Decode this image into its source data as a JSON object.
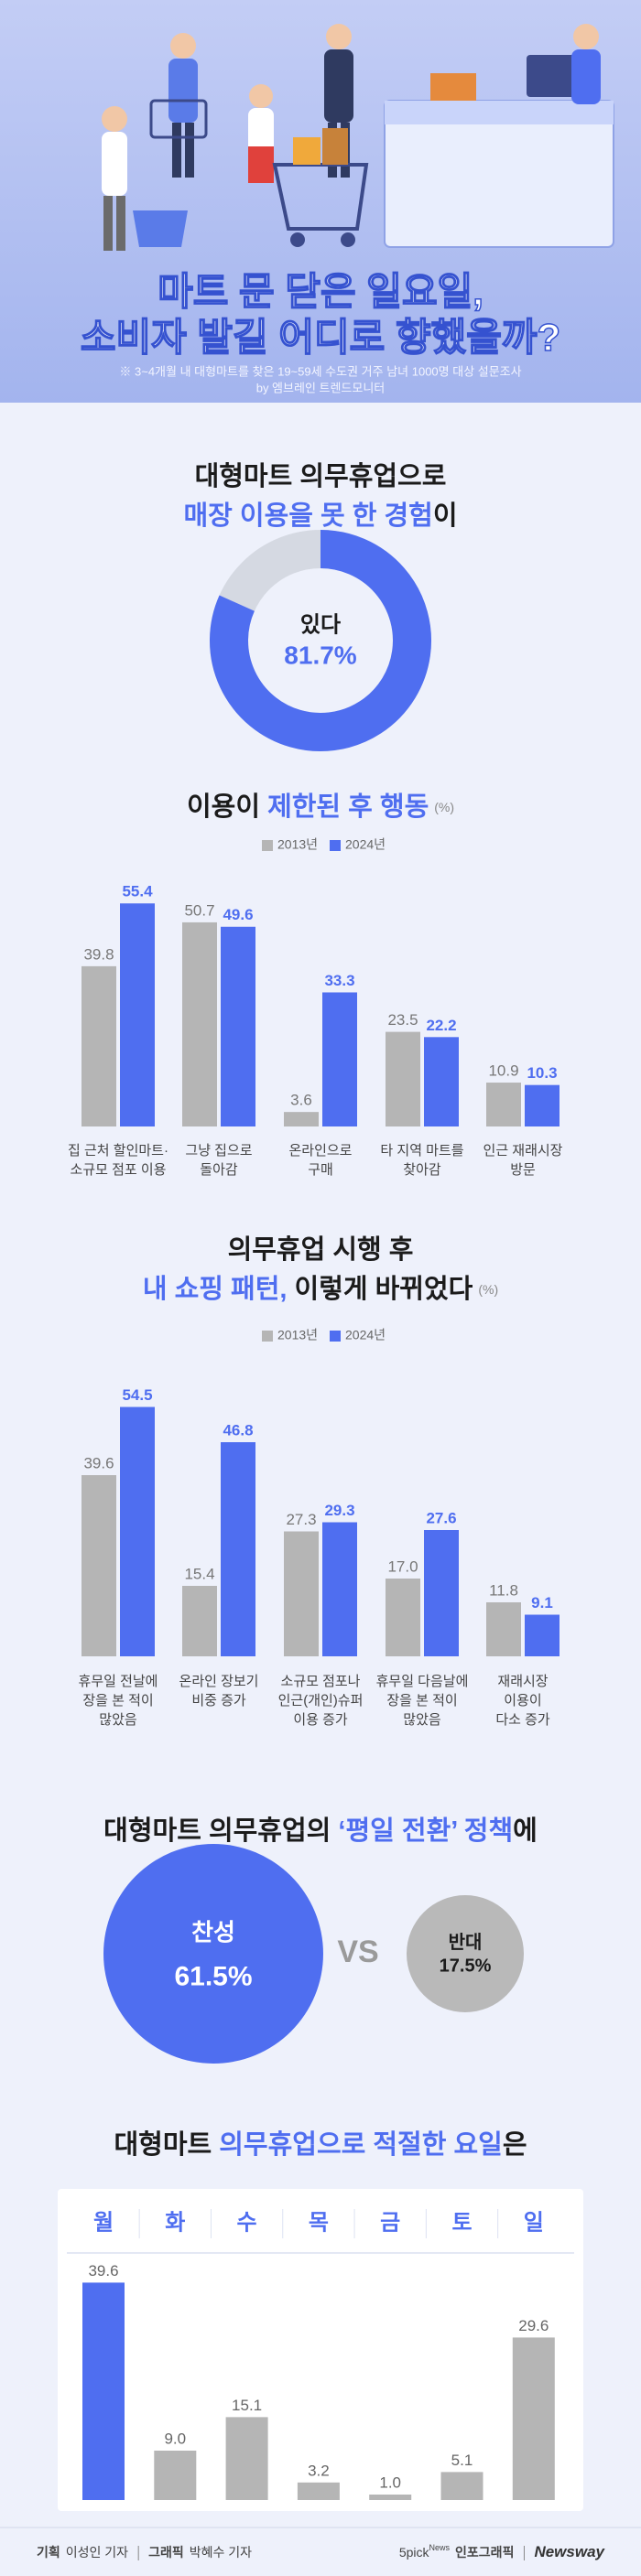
{
  "header": {
    "title": [
      "마트 문 닫은 일요일,",
      "소비자 발길 어디로 향했을까?"
    ],
    "note": [
      "※ 3~4개월 내 대형마트를 찾은 19~59세 수도권 거주 남녀 1000명 대상 설문조사",
      "by 엠브레인 트렌드모니터"
    ]
  },
  "chart_data": [
    {
      "type": "donut",
      "title": [
        [
          "대형마트 의무휴업으로"
        ],
        [
          "매장 이용을 못 한 경험",
          "이"
        ]
      ],
      "categories": [
        "있다"
      ],
      "values": [
        81.7
      ],
      "value_labels": [
        "81.7%"
      ],
      "color": "#4f6ef0",
      "rest_color": "#d5d9e2"
    },
    {
      "type": "bar",
      "title": [
        [
          "이용이 ",
          "제한된 후 행동"
        ]
      ],
      "unit": "(%)",
      "categories": [
        [
          "집 근처 할인마트·",
          "소규모 점포 이용"
        ],
        [
          "그냥 집으로",
          "돌아감"
        ],
        [
          "온라인으로",
          "구매"
        ],
        [
          "타 지역 마트를",
          "찾아감"
        ],
        [
          "인근 재래시장",
          "방문"
        ]
      ],
      "series": [
        {
          "name": "2013년",
          "color": "#b5b5b5",
          "values": [
            39.8,
            50.7,
            3.6,
            23.5,
            10.9
          ]
        },
        {
          "name": "2024년",
          "color": "#4f6ef0",
          "values": [
            55.4,
            49.6,
            33.3,
            22.2,
            10.3
          ]
        }
      ]
    },
    {
      "type": "bar",
      "title": [
        [
          "의무휴업 시행 후"
        ],
        [
          "내 쇼핑 패턴,",
          " 이렇게 바뀌었다"
        ]
      ],
      "unit": "(%)",
      "categories": [
        [
          "휴무일 전날에",
          "장을 본 적이",
          "많았음"
        ],
        [
          "온라인 장보기",
          "비중 증가"
        ],
        [
          "소규모 점포나",
          "인근(개인)슈퍼",
          "이용 증가"
        ],
        [
          "휴무일 다음날에",
          "장을 본 적이",
          "많았음"
        ],
        [
          "재래시장",
          "이용이",
          "다소 증가"
        ]
      ],
      "series": [
        {
          "name": "2013년",
          "color": "#b5b5b5",
          "values": [
            39.6,
            15.4,
            27.3,
            17.0,
            11.8
          ],
          "value_labels": [
            "39.6",
            "15.4",
            "27.3",
            "17.0",
            "11.8"
          ]
        },
        {
          "name": "2024년",
          "color": "#4f6ef0",
          "values": [
            54.5,
            46.8,
            29.3,
            27.6,
            9.1
          ]
        }
      ]
    },
    {
      "type": "bubble",
      "title": [
        [
          "대형마트 의무휴업의 ",
          "‘평일 전환’ 정책",
          "에"
        ]
      ],
      "categories": [
        "찬성",
        "반대"
      ],
      "values": [
        61.5,
        17.5
      ],
      "value_labels": [
        "61.5%",
        "17.5%"
      ],
      "colors": [
        "#4f6ef0",
        "#b9b9b9"
      ],
      "separator": "VS"
    },
    {
      "type": "bar",
      "title": [
        [
          "대형마트 ",
          "의무휴업으로 적절한 요일",
          "은"
        ]
      ],
      "categories": [
        [
          "월"
        ],
        [
          "화"
        ],
        [
          "수"
        ],
        [
          "목"
        ],
        [
          "금"
        ],
        [
          "토"
        ],
        [
          "일"
        ]
      ],
      "values": [
        39.6,
        9.0,
        15.1,
        3.2,
        1.0,
        5.1,
        29.6
      ],
      "value_labels": [
        "39.6",
        "9.0",
        "15.1",
        "3.2",
        "1.0",
        "5.1",
        "29.6"
      ],
      "colors": [
        "#4f6ef0",
        "#b5b5b5",
        "#b5b5b5",
        "#b5b5b5",
        "#b5b5b5",
        "#b5b5b5",
        "#b5b5b5"
      ]
    }
  ],
  "footer": {
    "credits": [
      "기획",
      "이성인 기자",
      "그래픽",
      "박혜수 기자"
    ],
    "brand": [
      "5pick",
      "News",
      "인포그래픽",
      "Newsway"
    ]
  }
}
